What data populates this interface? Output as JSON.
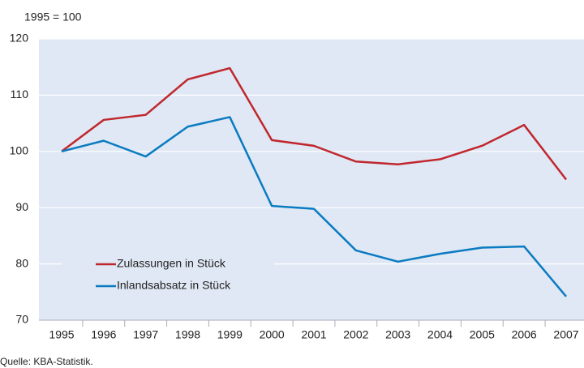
{
  "chart_data": {
    "type": "line",
    "y_label": "1995 = 100",
    "source": "Quelle: KBA-Statistik.",
    "categories": [
      "1995",
      "1996",
      "1997",
      "1998",
      "1999",
      "2000",
      "2001",
      "2002",
      "2003",
      "2004",
      "2005",
      "2006",
      "2007"
    ],
    "series": [
      {
        "name": "Zulassungen in Stück",
        "color": "#c0272d",
        "values": [
          100,
          105.6,
          106.5,
          112.8,
          114.8,
          102,
          101,
          98.2,
          97.7,
          98.6,
          101,
          104.7,
          95
        ]
      },
      {
        "name": "Inlandsabsatz in Stück",
        "color": "#0a7bc1",
        "values": [
          100,
          101.9,
          99.1,
          104.4,
          106.1,
          90.3,
          89.8,
          82.4,
          80.4,
          81.8,
          82.9,
          83.1,
          74.2
        ]
      }
    ],
    "ylim": [
      70,
      120
    ],
    "yticks": [
      70,
      80,
      90,
      100,
      110,
      120
    ],
    "grid": true,
    "legend": "lower left"
  }
}
